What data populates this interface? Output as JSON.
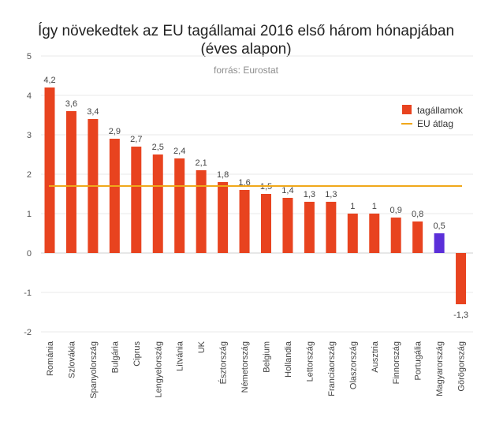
{
  "chart_data": {
    "type": "bar",
    "title": "Így növekedtek az EU tagállamai 2016 első három hónapjában\n(éves alapon)",
    "title_lines": [
      "Így növekedtek az EU tagállamai 2016 első három hónapjában",
      "(éves alapon)"
    ],
    "subtitle": "forrás: Eurostat",
    "categories": [
      "Románia",
      "Szlovákia",
      "Spanyolország",
      "Bulgária",
      "Ciprus",
      "Lengyelország",
      "Litvánia",
      "UK",
      "Észtország",
      "Németország",
      "Belgium",
      "Hollandia",
      "Lettország",
      "Franciaország",
      "Olaszország",
      "Ausztria",
      "Finnország",
      "Portugália",
      "Magyarország",
      "Görögország"
    ],
    "series": [
      {
        "name": "tagállamok",
        "values": [
          4.2,
          3.6,
          3.4,
          2.9,
          2.7,
          2.5,
          2.4,
          2.1,
          1.8,
          1.6,
          1.5,
          1.4,
          1.3,
          1.3,
          1.0,
          1.0,
          0.9,
          0.8,
          0.5,
          -1.3
        ],
        "labels": [
          "4,2",
          "3,6",
          "3,4",
          "2,9",
          "2,7",
          "2,5",
          "2,4",
          "2,1",
          "1,8",
          "1,6",
          "1,5",
          "1,4",
          "1,3",
          "1,3",
          "1",
          "1",
          "0,9",
          "0,8",
          "0,5",
          "-1,3"
        ],
        "color": "#e8431f",
        "highlight_index": 18,
        "highlight_color": "#5b2fd9"
      },
      {
        "name": "EU átlag",
        "type": "line",
        "value": 1.7,
        "color": "#f0a81a"
      }
    ],
    "ylim": [
      -2,
      5
    ],
    "yticks": [
      -2,
      -1,
      0,
      1,
      2,
      3,
      4,
      5
    ],
    "ytick_labels": [
      "-2",
      "-1",
      "0",
      "1",
      "2",
      "3",
      "4",
      "5"
    ],
    "grid": true,
    "legend": "top-right",
    "xlabel": "",
    "ylabel": ""
  }
}
